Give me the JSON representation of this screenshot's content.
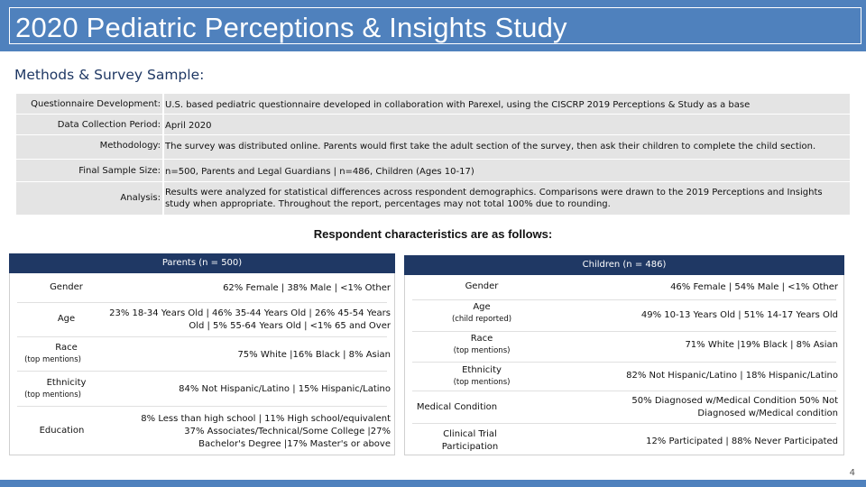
{
  "header": {
    "title": "2020 Pediatric Perceptions & Insights Study"
  },
  "methods": {
    "heading": "Methods & Survey Sample:",
    "rows": [
      {
        "label": "Questionnaire Development:",
        "value": "U.S. based pediatric questionnaire developed in collaboration with Parexel, using the CISCRP 2019 Perceptions & Study as a base"
      },
      {
        "label": "Data Collection Period:",
        "value": "April 2020"
      },
      {
        "label": "Methodology:",
        "value": "The survey was distributed online. Parents would first take the adult section of the survey, then ask their children to complete the child section."
      },
      {
        "label": "Final Sample Size:",
        "value": "n=500, Parents and Legal Guardians | n=486, Children (Ages 10-17)"
      },
      {
        "label": "Analysis:",
        "value": "Results were analyzed for statistical differences across respondent demographics. Comparisons were drawn to the 2019 Perceptions and Insights study when appropriate. Throughout the report, percentages may not total 100% due to rounding."
      }
    ]
  },
  "respondents": {
    "heading": "Respondent characteristics are as follows:",
    "parents": {
      "title": "Parents (n = 500)",
      "rows": [
        {
          "label": "Gender",
          "sub": "",
          "value": "62% Female | 38% Male | <1% Other"
        },
        {
          "label": "Age",
          "sub": "",
          "value": "23% 18-34 Years Old | 46% 35-44 Years Old | 26% 45-54 Years Old | 5% 55-64 Years Old | <1% 65 and Over"
        },
        {
          "label": "Race",
          "sub": "(top mentions)",
          "value": "75% White |16% Black | 8% Asian"
        },
        {
          "label": "Ethnicity",
          "sub": "(top mentions)",
          "value": "84% Not Hispanic/Latino | 15% Hispanic/Latino"
        },
        {
          "label": "Education",
          "sub": "",
          "value": "8% Less than high school | 11% High school/equivalent 37% Associates/Technical/Some College |27% Bachelor's Degree |17% Master's or above"
        }
      ]
    },
    "children": {
      "title": "Children (n = 486)",
      "rows": [
        {
          "label": "Gender",
          "sub": "",
          "value": "46% Female | 54% Male | <1% Other"
        },
        {
          "label": "Age",
          "sub": "(child reported)",
          "value": "49% 10-13 Years Old | 51% 14-17 Years Old"
        },
        {
          "label": "Race",
          "sub": "(top mentions)",
          "value": "71% White |19% Black | 8% Asian"
        },
        {
          "label": "Ethnicity",
          "sub": "(top mentions)",
          "value": "82% Not Hispanic/Latino | 18% Hispanic/Latino"
        },
        {
          "label": "Medical Condition",
          "sub": "",
          "value": "50% Diagnosed w/Medical Condition 50% Not Diagnosed w/Medical condition"
        },
        {
          "label": "Clinical Trial Participation",
          "sub": "",
          "value": "12% Participated | 88% Never Participated"
        }
      ]
    }
  },
  "footer": {
    "page_number": "4"
  },
  "colors": {
    "header": "#4f81bd",
    "panel_header": "#1f3864",
    "row_bg": "#e4e4e4"
  }
}
